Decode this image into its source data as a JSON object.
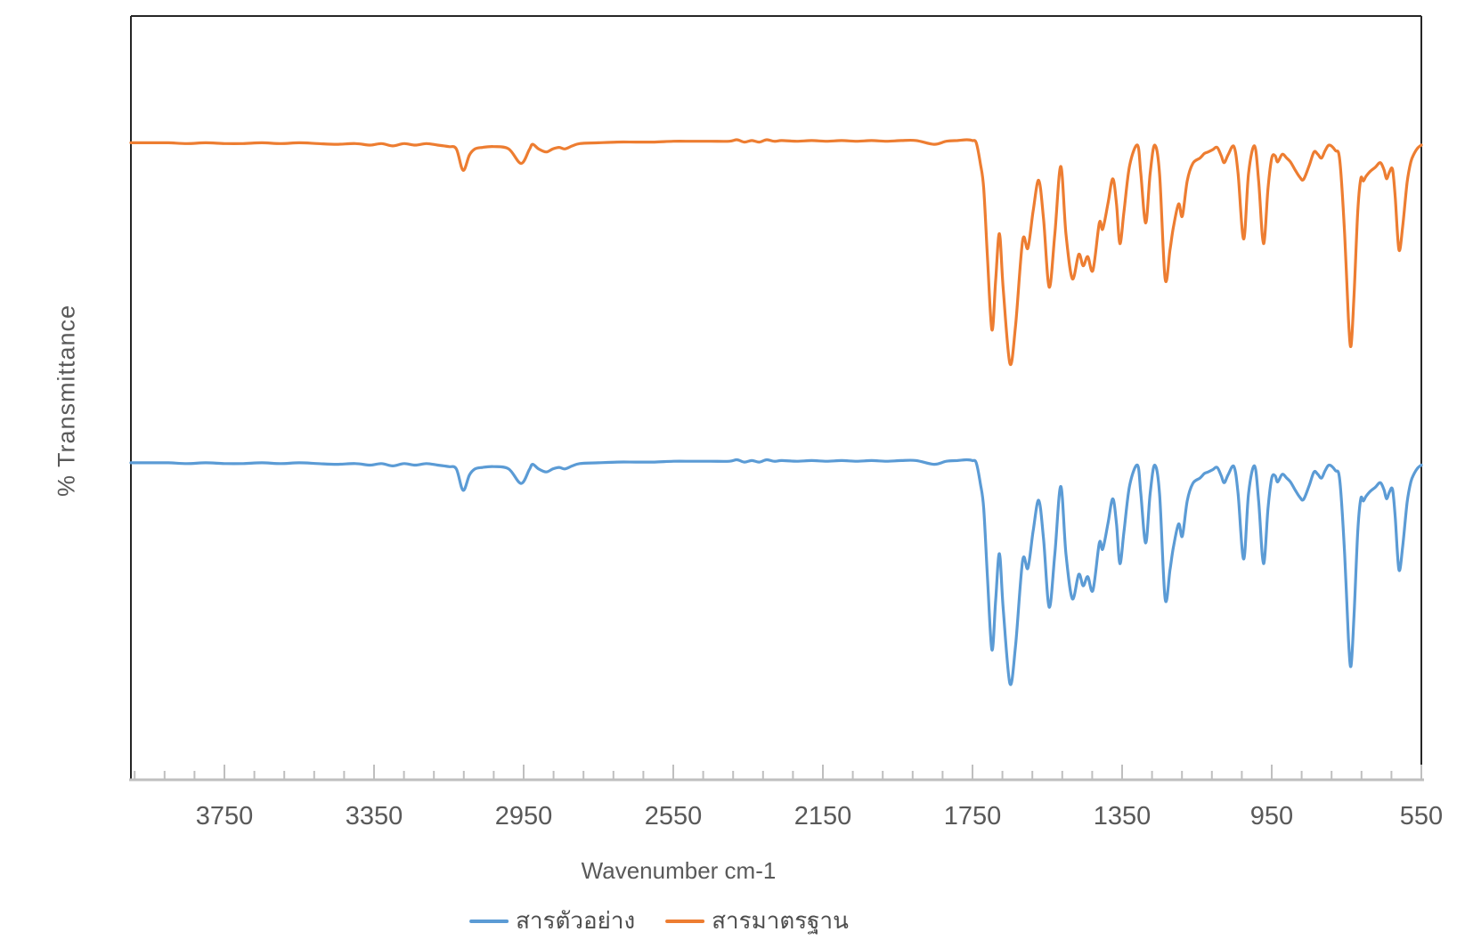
{
  "chart_data": {
    "type": "line",
    "title": "",
    "xlabel": "Wavenumber cm-1",
    "ylabel": "% Transmittance",
    "xlim": [
      4000,
      550
    ],
    "x_axis_reversed": true,
    "x_tick_labels": [
      3750,
      3350,
      2950,
      2550,
      2150,
      1750,
      1350,
      950,
      550
    ],
    "minor_tick_step": 80,
    "major_tick_step": 400,
    "grid": false,
    "legend_position": "bottom",
    "y_axis_tick_labels_shown": false,
    "x": [
      4000,
      3950,
      3900,
      3850,
      3800,
      3750,
      3700,
      3650,
      3600,
      3550,
      3500,
      3450,
      3400,
      3360,
      3330,
      3300,
      3270,
      3240,
      3210,
      3180,
      3150,
      3130,
      3112,
      3095,
      3080,
      3060,
      3030,
      2990,
      2957,
      2935,
      2926,
      2910,
      2890,
      2872,
      2855,
      2840,
      2820,
      2800,
      2750,
      2700,
      2650,
      2600,
      2550,
      2500,
      2450,
      2400,
      2380,
      2360,
      2340,
      2320,
      2300,
      2280,
      2260,
      2220,
      2180,
      2140,
      2100,
      2060,
      2020,
      1980,
      1940,
      1900,
      1853,
      1820,
      1790,
      1765,
      1750,
      1740,
      1729,
      1720,
      1710,
      1698,
      1688,
      1678,
      1668,
      1650,
      1635,
      1616,
      1602,
      1588,
      1573,
      1560,
      1545,
      1530,
      1514,
      1500,
      1483,
      1466,
      1454,
      1442,
      1428,
      1411,
      1402,
      1388,
      1375,
      1365,
      1356,
      1345,
      1330,
      1309,
      1300,
      1287,
      1275,
      1263,
      1250,
      1235,
      1222,
      1213,
      1199,
      1189,
      1176,
      1161,
      1142,
      1130,
      1120,
      1108,
      1096,
      1085,
      1077,
      1066,
      1051,
      1040,
      1025,
      1012,
      996,
      985,
      972,
      960,
      950,
      941,
      934,
      922,
      910,
      900,
      888,
      875,
      865,
      850,
      837,
      827,
      817,
      807,
      796,
      780,
      768,
      755,
      745,
      738,
      730,
      720,
      712,
      705,
      698,
      686,
      673,
      660,
      650,
      643,
      635,
      627,
      620,
      610,
      600,
      588,
      578,
      569,
      560,
      550
    ],
    "series": [
      {
        "name": "สารตัวอย่าง",
        "color": "#5B9BD5",
        "baseline_frac": 0.585,
        "values": [
          100,
          100,
          100,
          99.9,
          100,
          99.9,
          99.9,
          100,
          99.9,
          100,
          99.9,
          99.8,
          99.9,
          99.7,
          99.9,
          99.6,
          99.9,
          99.7,
          99.9,
          99.7,
          99.5,
          99.2,
          96.4,
          98.4,
          99.2,
          99.4,
          99.5,
          99.2,
          97.3,
          99.1,
          99.8,
          99.2,
          98.8,
          99.2,
          99.4,
          99.2,
          99.6,
          99.9,
          100,
          100.1,
          100.1,
          100.1,
          100.2,
          100.2,
          100.2,
          100.2,
          100.4,
          100.1,
          100.3,
          100.1,
          100.4,
          100.2,
          100.3,
          100.2,
          100.3,
          100.2,
          100.3,
          100.2,
          100.3,
          100.2,
          100.3,
          100.3,
          99.8,
          100.2,
          100.3,
          100.4,
          100.3,
          100,
          97.3,
          94,
          85,
          75.5,
          82,
          88.1,
          81,
          71.1,
          76,
          87.2,
          86.2,
          91,
          95.1,
          90,
          81.1,
          88,
          96.9,
          88,
          82.2,
          85.4,
          83.9,
          85.1,
          83.3,
          89.5,
          88.7,
          92,
          95.3,
          92,
          86.8,
          91,
          97,
          99.7,
          96,
          89.5,
          96,
          99.7,
          96,
          82.2,
          86,
          88.9,
          92,
          90.4,
          95,
          97.3,
          98,
          98.6,
          98.8,
          99.1,
          99.4,
          98.3,
          97.4,
          98.5,
          99.5,
          96,
          87.4,
          96,
          99.6,
          95,
          86.8,
          94,
          98,
          98.3,
          97.5,
          98.5,
          98,
          97.5,
          96.5,
          95.5,
          95.2,
          97,
          98.8,
          98.5,
          98,
          99,
          99.7,
          99,
          97.7,
          88,
          77,
          73.4,
          80,
          91,
          95.3,
          95,
          95.6,
          96.3,
          96.8,
          97.4,
          96.5,
          95.3,
          96.2,
          96.5,
          93,
          86,
          89,
          94.8,
          97.5,
          98.6,
          99.3,
          99.7
        ]
      },
      {
        "name": "สารมาตรฐาน",
        "color": "#ED7D31",
        "baseline_frac": 0.166,
        "values": [
          100,
          100,
          100,
          99.9,
          100,
          99.9,
          99.9,
          100,
          99.9,
          100,
          99.9,
          99.8,
          99.9,
          99.7,
          99.9,
          99.6,
          99.9,
          99.7,
          99.9,
          99.7,
          99.5,
          99.2,
          96.4,
          98.4,
          99.2,
          99.4,
          99.5,
          99.2,
          97.3,
          99.1,
          99.8,
          99.2,
          98.8,
          99.2,
          99.4,
          99.2,
          99.6,
          99.9,
          100,
          100.1,
          100.1,
          100.1,
          100.2,
          100.2,
          100.2,
          100.2,
          100.4,
          100.1,
          100.3,
          100.1,
          100.4,
          100.2,
          100.3,
          100.2,
          100.3,
          100.2,
          100.3,
          100.2,
          100.3,
          100.2,
          100.3,
          100.3,
          99.8,
          100.2,
          100.3,
          100.4,
          100.3,
          100,
          97.3,
          94,
          85,
          75.5,
          82,
          88.1,
          81,
          71.1,
          76,
          87.2,
          86.2,
          91,
          95.1,
          90,
          81.1,
          88,
          96.9,
          88,
          82.2,
          85.4,
          83.9,
          85.1,
          83.3,
          89.5,
          88.7,
          92,
          95.3,
          92,
          86.8,
          91,
          97,
          99.7,
          96,
          89.5,
          96,
          99.7,
          96,
          82.2,
          86,
          88.9,
          92,
          90.4,
          95,
          97.3,
          98,
          98.6,
          98.8,
          99.1,
          99.4,
          98.3,
          97.4,
          98.5,
          99.5,
          96,
          87.4,
          96,
          99.6,
          95,
          86.8,
          94,
          98,
          98.3,
          97.5,
          98.5,
          98,
          97.5,
          96.5,
          95.5,
          95.2,
          97,
          98.8,
          98.5,
          98,
          99,
          99.7,
          99,
          97.7,
          88,
          77,
          73.4,
          80,
          91,
          95.3,
          95,
          95.6,
          96.3,
          96.8,
          97.4,
          96.5,
          95.3,
          96.2,
          96.5,
          93,
          86,
          89,
          94.8,
          97.5,
          98.6,
          99.3,
          99.7
        ]
      }
    ]
  },
  "colors": {
    "plot_border": "#262626",
    "axis_line": "#BFBFBF",
    "tick": "#BFBFBF",
    "tick_label_text": "#595959",
    "axis_title_text": "#595959",
    "legend_text": "#4d4d4d",
    "background": "#ffffff"
  }
}
